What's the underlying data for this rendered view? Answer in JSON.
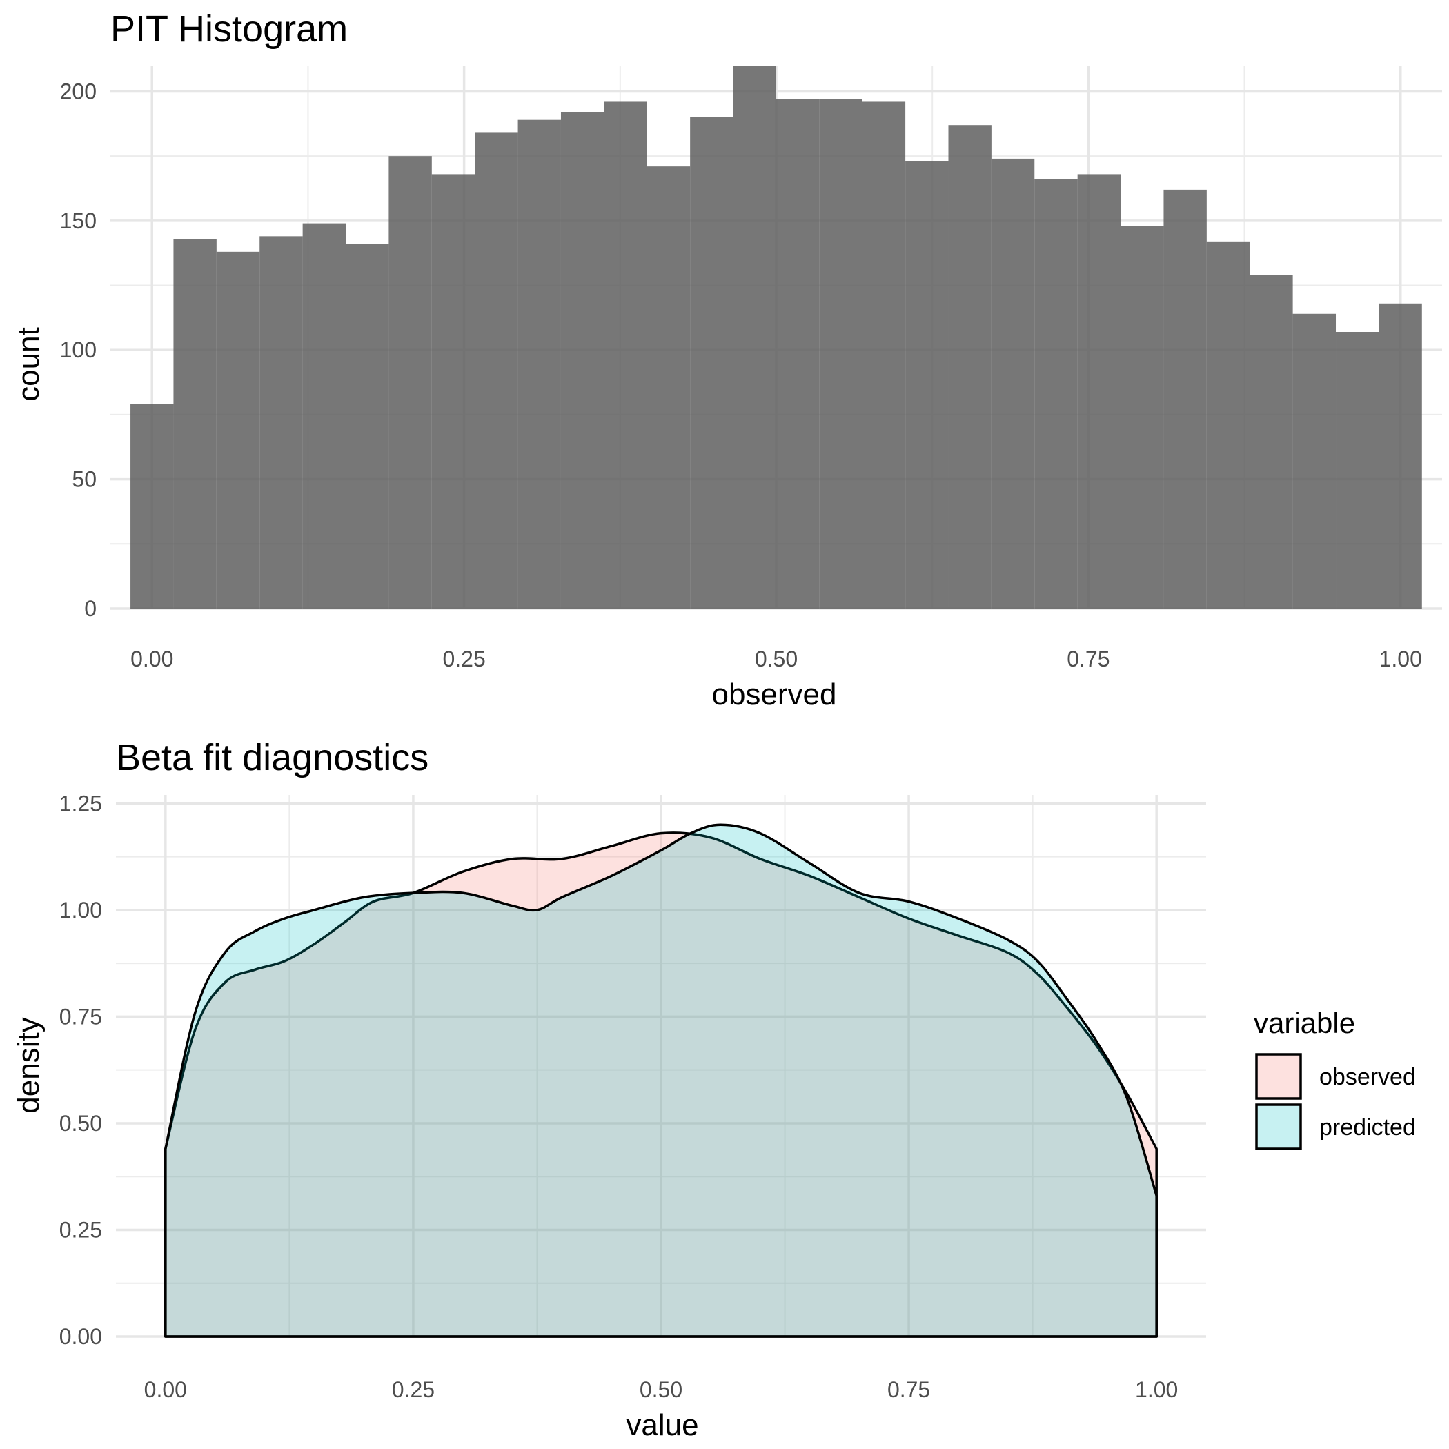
{
  "chart_data": [
    {
      "type": "bar",
      "title": "PIT Histogram",
      "xlabel": "observed",
      "ylabel": "count",
      "xlim": [
        -0.0333,
        1.0333
      ],
      "ylim": [
        0,
        210
      ],
      "x_ticks": [
        "0.00",
        "0.25",
        "0.50",
        "0.75",
        "1.00"
      ],
      "y_ticks": [
        "0",
        "50",
        "100",
        "150",
        "200"
      ],
      "bar_color": "#595959",
      "bins": {
        "start": -0.01724,
        "width": 0.03448,
        "counts": [
          79,
          143,
          138,
          144,
          149,
          141,
          175,
          168,
          184,
          189,
          192,
          196,
          171,
          190,
          210,
          197,
          197,
          196,
          173,
          187,
          174,
          166,
          168,
          148,
          162,
          142,
          129,
          114,
          107,
          118
        ]
      }
    },
    {
      "type": "area",
      "title": "Beta fit diagnostics",
      "xlabel": "value",
      "ylabel": "density",
      "xlim": [
        0,
        1
      ],
      "ylim": [
        0,
        1.25
      ],
      "x_ticks": [
        "0.00",
        "0.25",
        "0.50",
        "0.75",
        "1.00"
      ],
      "y_ticks": [
        "0.00",
        "0.25",
        "0.50",
        "0.75",
        "1.00",
        "1.25"
      ],
      "legend": {
        "title": "variable",
        "position": "right"
      },
      "series": [
        {
          "name": "observed",
          "color": "#f8766d",
          "x": [
            0,
            0.03,
            0.06,
            0.09,
            0.12,
            0.15,
            0.18,
            0.21,
            0.25,
            0.3,
            0.35,
            0.4,
            0.45,
            0.5,
            0.55,
            0.6,
            0.65,
            0.7,
            0.75,
            0.8,
            0.85,
            0.88,
            0.91,
            0.94,
            0.97,
            1.0
          ],
          "y": [
            0.44,
            0.72,
            0.83,
            0.86,
            0.88,
            0.92,
            0.97,
            1.02,
            1.04,
            1.09,
            1.12,
            1.12,
            1.15,
            1.18,
            1.17,
            1.12,
            1.08,
            1.03,
            0.98,
            0.94,
            0.9,
            0.85,
            0.77,
            0.68,
            0.57,
            0.44
          ]
        },
        {
          "name": "predicted",
          "color": "#00bfc4",
          "x": [
            0,
            0.03,
            0.06,
            0.09,
            0.12,
            0.15,
            0.2,
            0.25,
            0.3,
            0.35,
            0.375,
            0.4,
            0.45,
            0.5,
            0.53,
            0.56,
            0.6,
            0.65,
            0.7,
            0.75,
            0.8,
            0.85,
            0.88,
            0.91,
            0.94,
            0.97,
            1.0
          ],
          "y": [
            0.44,
            0.76,
            0.9,
            0.95,
            0.98,
            1.0,
            1.03,
            1.04,
            1.04,
            1.01,
            1.0,
            1.03,
            1.08,
            1.14,
            1.18,
            1.2,
            1.18,
            1.11,
            1.04,
            1.02,
            0.98,
            0.93,
            0.88,
            0.79,
            0.69,
            0.56,
            0.33
          ]
        }
      ]
    }
  ]
}
